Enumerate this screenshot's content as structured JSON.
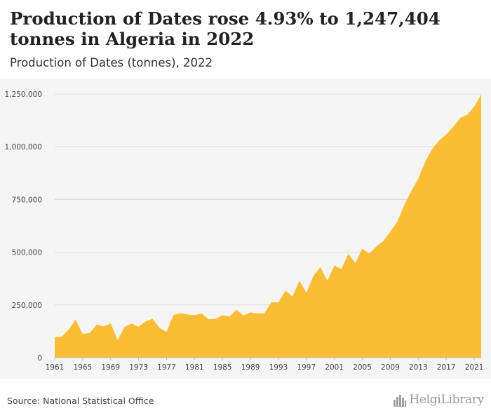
{
  "header": {
    "title": "Production of Dates rose 4.93% to 1,247,404 tonnes in Algeria in 2022",
    "subtitle": "Production of Dates (tonnes), 2022"
  },
  "footer": {
    "source": "Source: National Statistical Office",
    "logo_text_a": "Helgi",
    "logo_text_b": "Library",
    "logo_icon": "skyline-icon"
  },
  "colors": {
    "area_fill": "#fbbd35",
    "gridline": "#d9d9d9",
    "axis_text": "#444444"
  },
  "chart_data": {
    "type": "area",
    "title": "Production of Dates rose 4.93% to 1,247,404 tonnes in Algeria in 2022",
    "subtitle": "Production of Dates (tonnes), 2022",
    "xlabel": "",
    "ylabel": "",
    "xlim": [
      1961,
      2022
    ],
    "ylim": [
      0,
      1250000
    ],
    "grid": true,
    "legend": "none",
    "yticks": [
      0,
      250000,
      500000,
      750000,
      1000000,
      1250000
    ],
    "ytick_labels": [
      "0",
      "250,000",
      "500,000",
      "750,000",
      "1,000,000",
      "1,250,000"
    ],
    "xticks": [
      1961,
      1965,
      1969,
      1973,
      1977,
      1981,
      1985,
      1989,
      1993,
      1997,
      2001,
      2005,
      2009,
      2013,
      2017,
      2021
    ],
    "xtick_labels": [
      "1961",
      "1965",
      "1969",
      "1973",
      "1977",
      "1981",
      "1985",
      "1989",
      "1993",
      "1997",
      "2001",
      "2005",
      "2009",
      "2013",
      "2017",
      "2021"
    ],
    "x": [
      1961,
      1962,
      1963,
      1964,
      1965,
      1966,
      1967,
      1968,
      1969,
      1970,
      1971,
      1972,
      1973,
      1974,
      1975,
      1976,
      1977,
      1978,
      1979,
      1980,
      1981,
      1982,
      1983,
      1984,
      1985,
      1986,
      1987,
      1988,
      1989,
      1990,
      1991,
      1992,
      1993,
      1994,
      1995,
      1996,
      1997,
      1998,
      1999,
      2000,
      2001,
      2002,
      2003,
      2004,
      2005,
      2006,
      2007,
      2008,
      2009,
      2010,
      2011,
      2012,
      2013,
      2014,
      2015,
      2016,
      2017,
      2018,
      2019,
      2020,
      2021,
      2022
    ],
    "series": [
      {
        "values": [
          97000,
          100000,
          133000,
          180000,
          112000,
          117000,
          157000,
          148000,
          163000,
          84000,
          146000,
          162000,
          147000,
          172000,
          185000,
          141000,
          122000,
          203000,
          211000,
          205000,
          201000,
          210000,
          183000,
          184000,
          202000,
          195000,
          227000,
          200000,
          215000,
          210000,
          211000,
          263000,
          262000,
          318000,
          290000,
          365000,
          308000,
          387000,
          430000,
          365000,
          437000,
          420000,
          492000,
          449000,
          517000,
          493000,
          527000,
          553000,
          597000,
          644000,
          724000,
          789000,
          849000,
          930000,
          990000,
          1030000,
          1058000,
          1094000,
          1136000,
          1152000,
          1189000,
          1247404
        ]
      }
    ]
  }
}
